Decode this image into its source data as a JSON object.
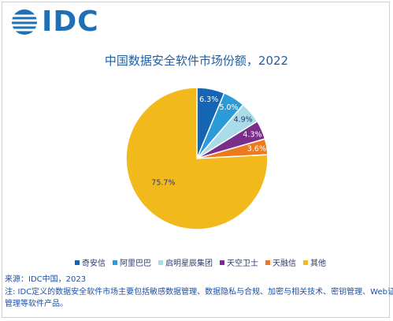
{
  "logo": {
    "text": "IDC"
  },
  "chart_data": {
    "type": "pie",
    "title": "中国数据安全软件市场份额，2022",
    "slices": [
      {
        "label": "奇安信",
        "value": 6.3,
        "display": "6.3%",
        "color": "#1565b5"
      },
      {
        "label": "阿里巴巴",
        "value": 5.0,
        "display": "5.0%",
        "color": "#2b9bd8"
      },
      {
        "label": "启明星辰集团",
        "value": 4.9,
        "display": "4.9%",
        "color": "#a9dbe8"
      },
      {
        "label": "天空卫士",
        "value": 4.3,
        "display": "4.3%",
        "color": "#7b2d8b"
      },
      {
        "label": "天融信",
        "value": 3.6,
        "display": "3.6%",
        "color": "#ec7a1c"
      },
      {
        "label": "其他",
        "value": 75.7,
        "display": "75.7%",
        "color": "#f2b91d"
      }
    ],
    "legend_position": "bottom"
  },
  "footer": {
    "source": "来源：IDC中国，2023",
    "note_line1": "注: IDC定义的数据安全软件市场主要包括敏感数据管理、数据隐私与合规、加密与相关技术、密钥管理、Web证书",
    "note_line2": "管理等软件产品。"
  }
}
